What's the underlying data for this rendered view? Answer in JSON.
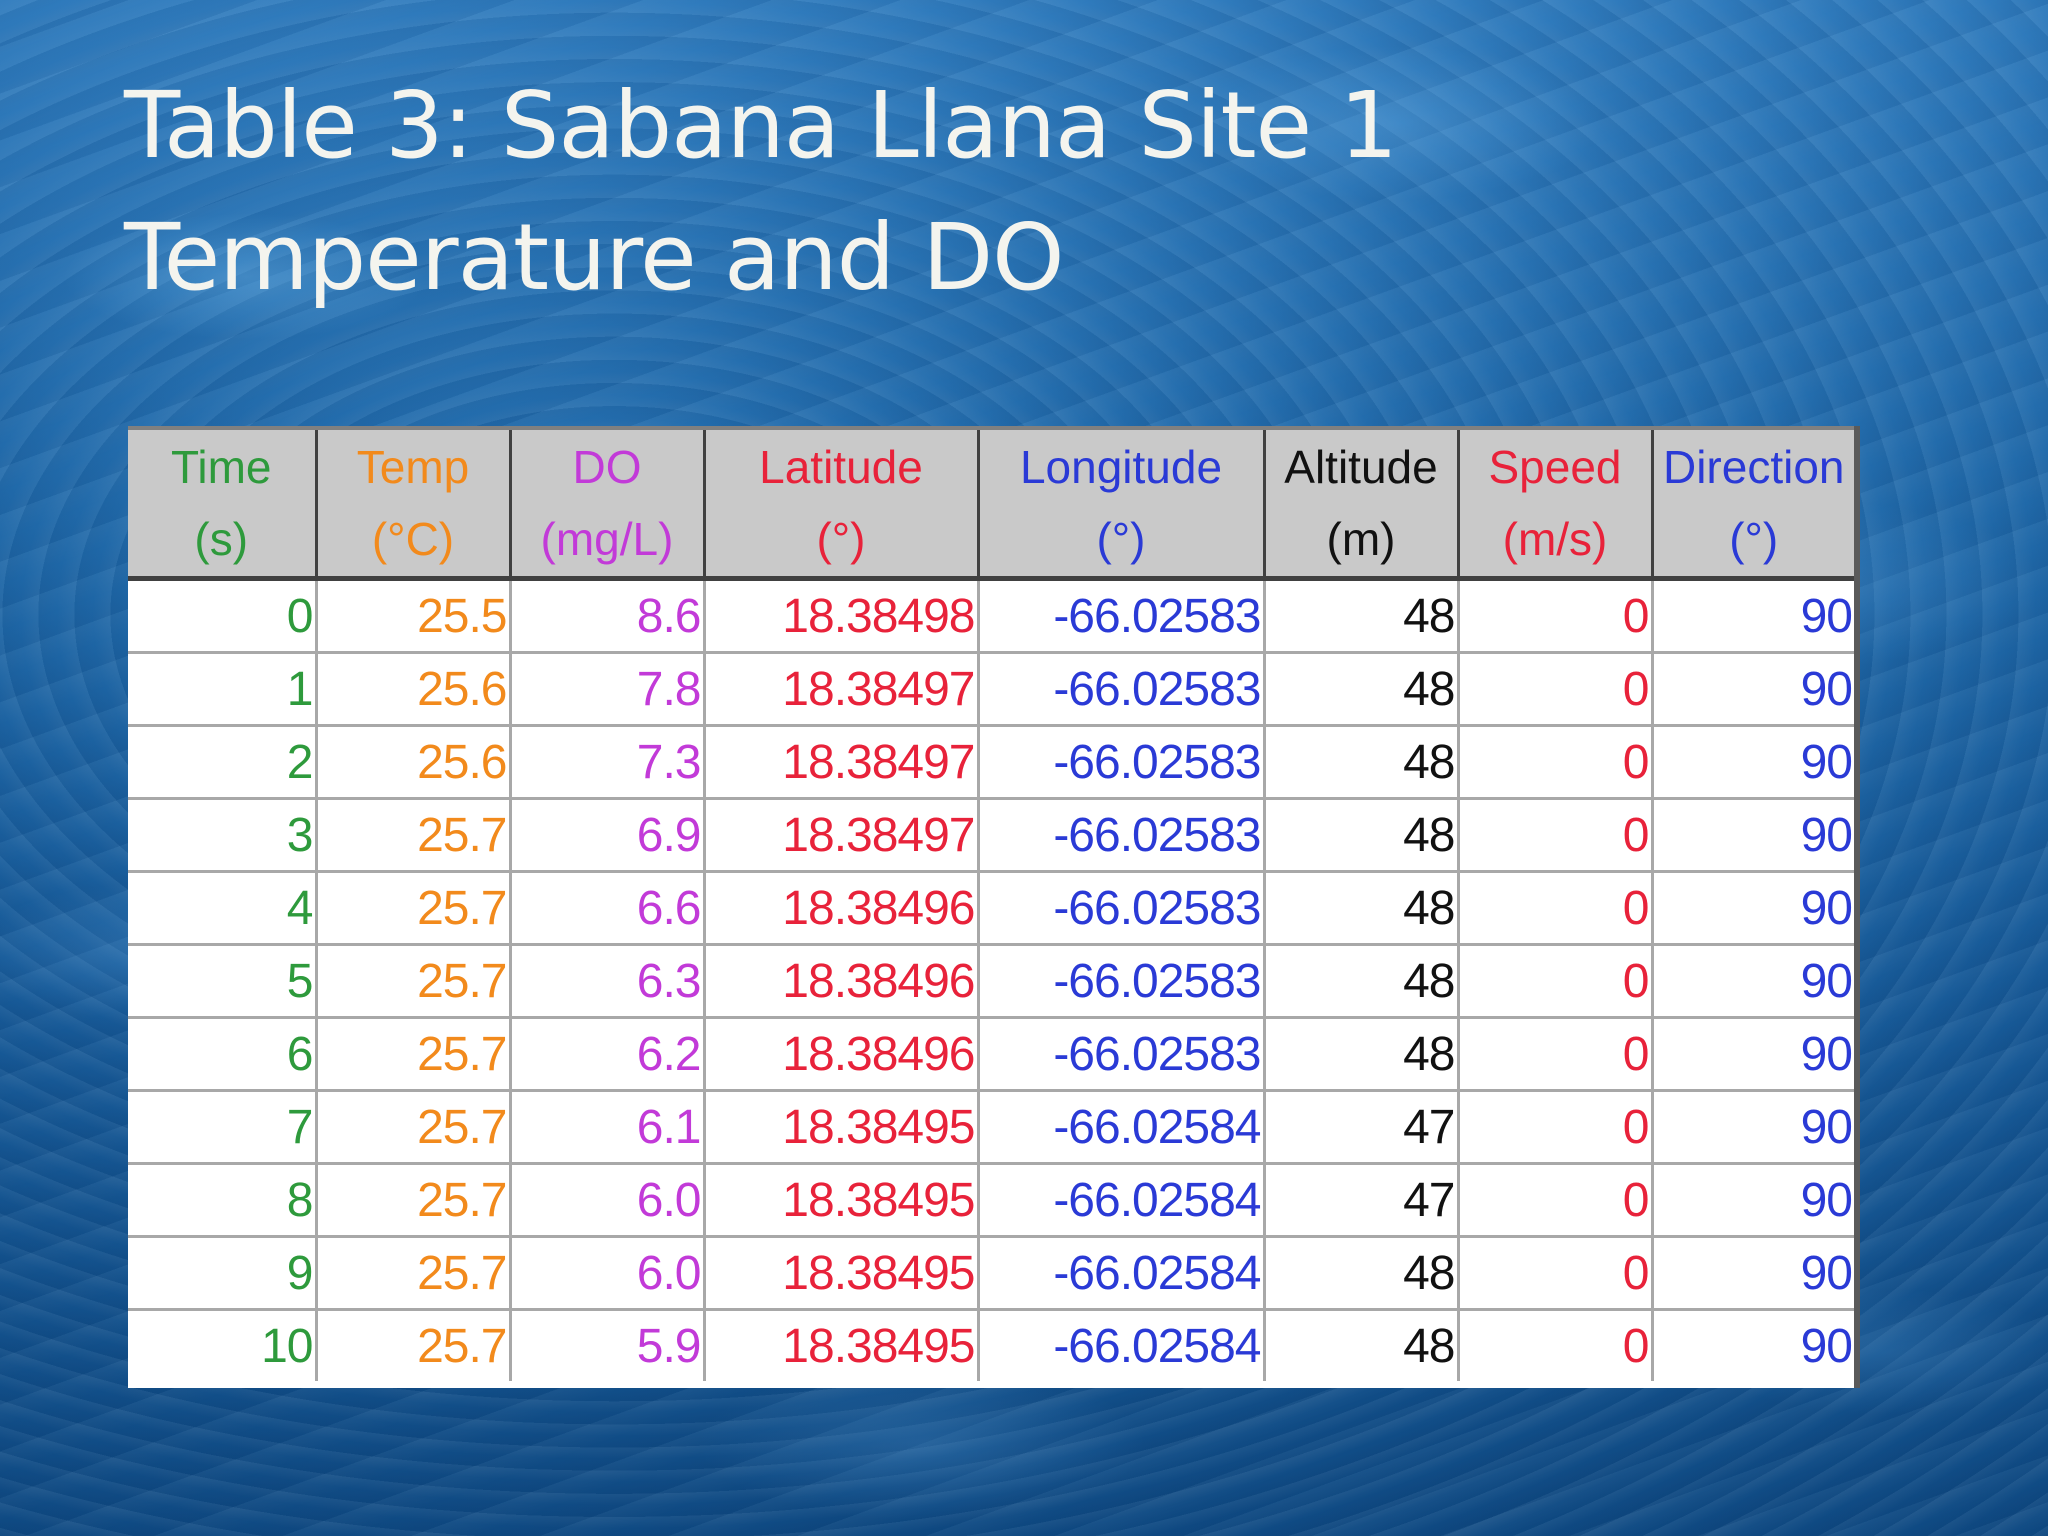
{
  "slide": {
    "title_line1": "Table 3: Sabana Llana Site 1",
    "title_line2": "Temperature and DO"
  },
  "table": {
    "columns": [
      {
        "name": "Time",
        "unit": "(s)",
        "color": "#2e9a3c"
      },
      {
        "name": "Temp",
        "unit": "(°C)",
        "color": "#f28a1c"
      },
      {
        "name": "DO",
        "unit": "(mg/L)",
        "color": "#c23ad8"
      },
      {
        "name": "Latitude",
        "unit": "(°)",
        "color": "#e8223a"
      },
      {
        "name": "Longitude",
        "unit": "(°)",
        "color": "#2a3ad6"
      },
      {
        "name": "Altitude",
        "unit": "(m)",
        "color": "#111111"
      },
      {
        "name": "Speed",
        "unit": "(m/s)",
        "color": "#e8223a"
      },
      {
        "name": "Direction",
        "unit": "(°)",
        "color": "#2a3ad6"
      }
    ],
    "rows": [
      [
        "0",
        "25.5",
        "8.6",
        "18.38498",
        "-66.02583",
        "48",
        "0",
        "90"
      ],
      [
        "1",
        "25.6",
        "7.8",
        "18.38497",
        "-66.02583",
        "48",
        "0",
        "90"
      ],
      [
        "2",
        "25.6",
        "7.3",
        "18.38497",
        "-66.02583",
        "48",
        "0",
        "90"
      ],
      [
        "3",
        "25.7",
        "6.9",
        "18.38497",
        "-66.02583",
        "48",
        "0",
        "90"
      ],
      [
        "4",
        "25.7",
        "6.6",
        "18.38496",
        "-66.02583",
        "48",
        "0",
        "90"
      ],
      [
        "5",
        "25.7",
        "6.3",
        "18.38496",
        "-66.02583",
        "48",
        "0",
        "90"
      ],
      [
        "6",
        "25.7",
        "6.2",
        "18.38496",
        "-66.02583",
        "48",
        "0",
        "90"
      ],
      [
        "7",
        "25.7",
        "6.1",
        "18.38495",
        "-66.02584",
        "47",
        "0",
        "90"
      ],
      [
        "8",
        "25.7",
        "6.0",
        "18.38495",
        "-66.02584",
        "47",
        "0",
        "90"
      ],
      [
        "9",
        "25.7",
        "6.0",
        "18.38495",
        "-66.02584",
        "48",
        "0",
        "90"
      ],
      [
        "10",
        "25.7",
        "5.9",
        "18.38495",
        "-66.02584",
        "48",
        "0",
        "90"
      ]
    ]
  }
}
